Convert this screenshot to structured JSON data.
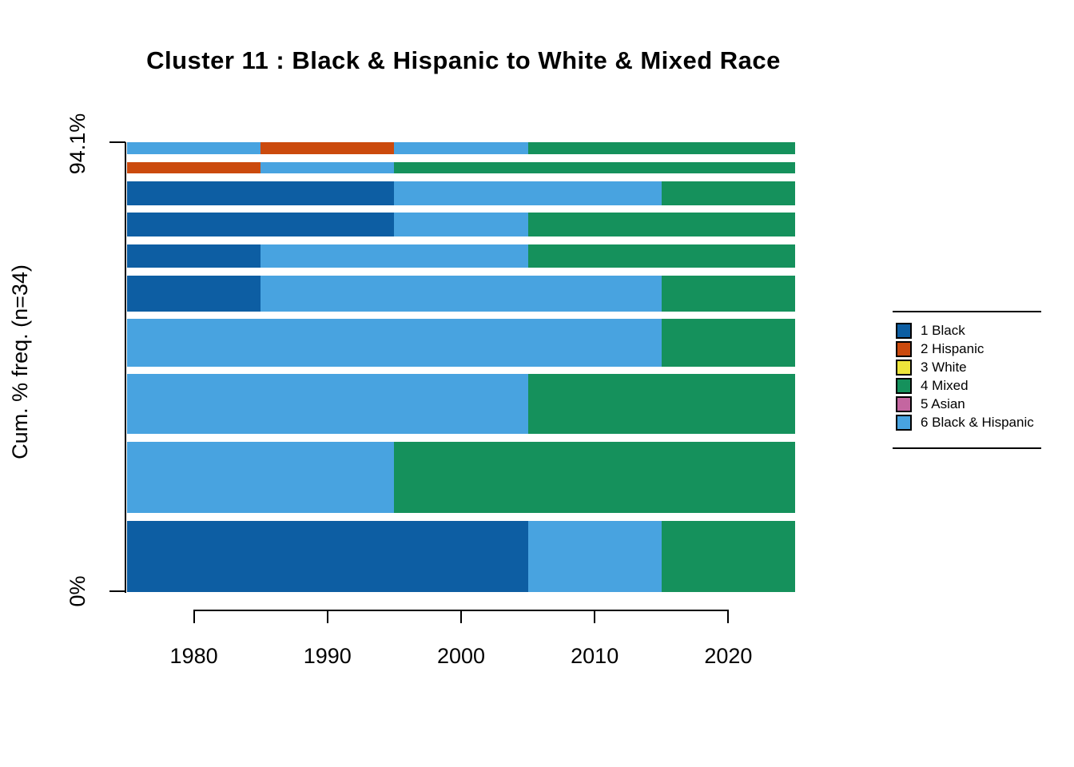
{
  "title": "Cluster 11 : Black & Hispanic to White & Mixed Race",
  "chart_data": {
    "type": "bar",
    "subtype": "sequence-frequency-plot-horizontal-stacked",
    "title": "Cluster 11 : Black & Hispanic to White & Mixed Race",
    "ylabel": "Cum. % freq. (n=34)",
    "n": 34,
    "cumulative_pct_shown": 94.1,
    "y_axis": {
      "top_label": "94.1%",
      "bottom_label": "0%"
    },
    "x_range": [
      1975,
      2025
    ],
    "x_ticks": [
      1980,
      1990,
      2000,
      2010,
      2020
    ],
    "grid": false,
    "legend_position": "right",
    "states": [
      {
        "id": 1,
        "label": "1 Black",
        "color": "#0D5EA3"
      },
      {
        "id": 2,
        "label": "2 Hispanic",
        "color": "#CB4A0D"
      },
      {
        "id": 3,
        "label": "3 White",
        "color": "#EDE53B"
      },
      {
        "id": 4,
        "label": "4 Mixed",
        "color": "#15915C"
      },
      {
        "id": 5,
        "label": "5 Asian",
        "color": "#C466A0"
      },
      {
        "id": 6,
        "label": "6 Black & Hispanic",
        "color": "#48A3E0"
      }
    ],
    "bar_spacing_ratio": 0.2,
    "rows_bottom_to_top": [
      {
        "freq": 6,
        "pct": 17.6,
        "segments": [
          {
            "state": 1,
            "from": 1975,
            "to": 2005
          },
          {
            "state": 6,
            "from": 2005,
            "to": 2015
          },
          {
            "state": 4,
            "from": 2015,
            "to": 2025
          }
        ]
      },
      {
        "freq": 6,
        "pct": 17.6,
        "segments": [
          {
            "state": 6,
            "from": 1975,
            "to": 1995
          },
          {
            "state": 4,
            "from": 1995,
            "to": 2025
          }
        ]
      },
      {
        "freq": 5,
        "pct": 14.7,
        "segments": [
          {
            "state": 6,
            "from": 1975,
            "to": 2005
          },
          {
            "state": 4,
            "from": 2005,
            "to": 2025
          }
        ]
      },
      {
        "freq": 4,
        "pct": 11.8,
        "segments": [
          {
            "state": 6,
            "from": 1975,
            "to": 2015
          },
          {
            "state": 4,
            "from": 2015,
            "to": 2025
          }
        ]
      },
      {
        "freq": 3,
        "pct": 8.8,
        "segments": [
          {
            "state": 1,
            "from": 1975,
            "to": 1985
          },
          {
            "state": 6,
            "from": 1985,
            "to": 2015
          },
          {
            "state": 4,
            "from": 2015,
            "to": 2025
          }
        ]
      },
      {
        "freq": 2,
        "pct": 5.9,
        "segments": [
          {
            "state": 1,
            "from": 1975,
            "to": 1985
          },
          {
            "state": 6,
            "from": 1985,
            "to": 2005
          },
          {
            "state": 4,
            "from": 2005,
            "to": 2025
          }
        ]
      },
      {
        "freq": 2,
        "pct": 5.9,
        "segments": [
          {
            "state": 1,
            "from": 1975,
            "to": 1995
          },
          {
            "state": 6,
            "from": 1995,
            "to": 2005
          },
          {
            "state": 4,
            "from": 2005,
            "to": 2025
          }
        ]
      },
      {
        "freq": 2,
        "pct": 5.9,
        "segments": [
          {
            "state": 1,
            "from": 1975,
            "to": 1995
          },
          {
            "state": 6,
            "from": 1995,
            "to": 2015
          },
          {
            "state": 4,
            "from": 2015,
            "to": 2025
          }
        ]
      },
      {
        "freq": 1,
        "pct": 2.9,
        "segments": [
          {
            "state": 2,
            "from": 1975,
            "to": 1985
          },
          {
            "state": 6,
            "from": 1985,
            "to": 1995
          },
          {
            "state": 4,
            "from": 1995,
            "to": 2025
          }
        ]
      },
      {
        "freq": 1,
        "pct": 2.9,
        "segments": [
          {
            "state": 6,
            "from": 1975,
            "to": 1985
          },
          {
            "state": 2,
            "from": 1985,
            "to": 1995
          },
          {
            "state": 6,
            "from": 1995,
            "to": 2005
          },
          {
            "state": 4,
            "from": 2005,
            "to": 2025
          }
        ]
      }
    ]
  },
  "legend": {
    "items": [
      "1 Black",
      "2 Hispanic",
      "3 White",
      "4 Mixed",
      "5 Asian",
      "6 Black & Hispanic"
    ]
  }
}
